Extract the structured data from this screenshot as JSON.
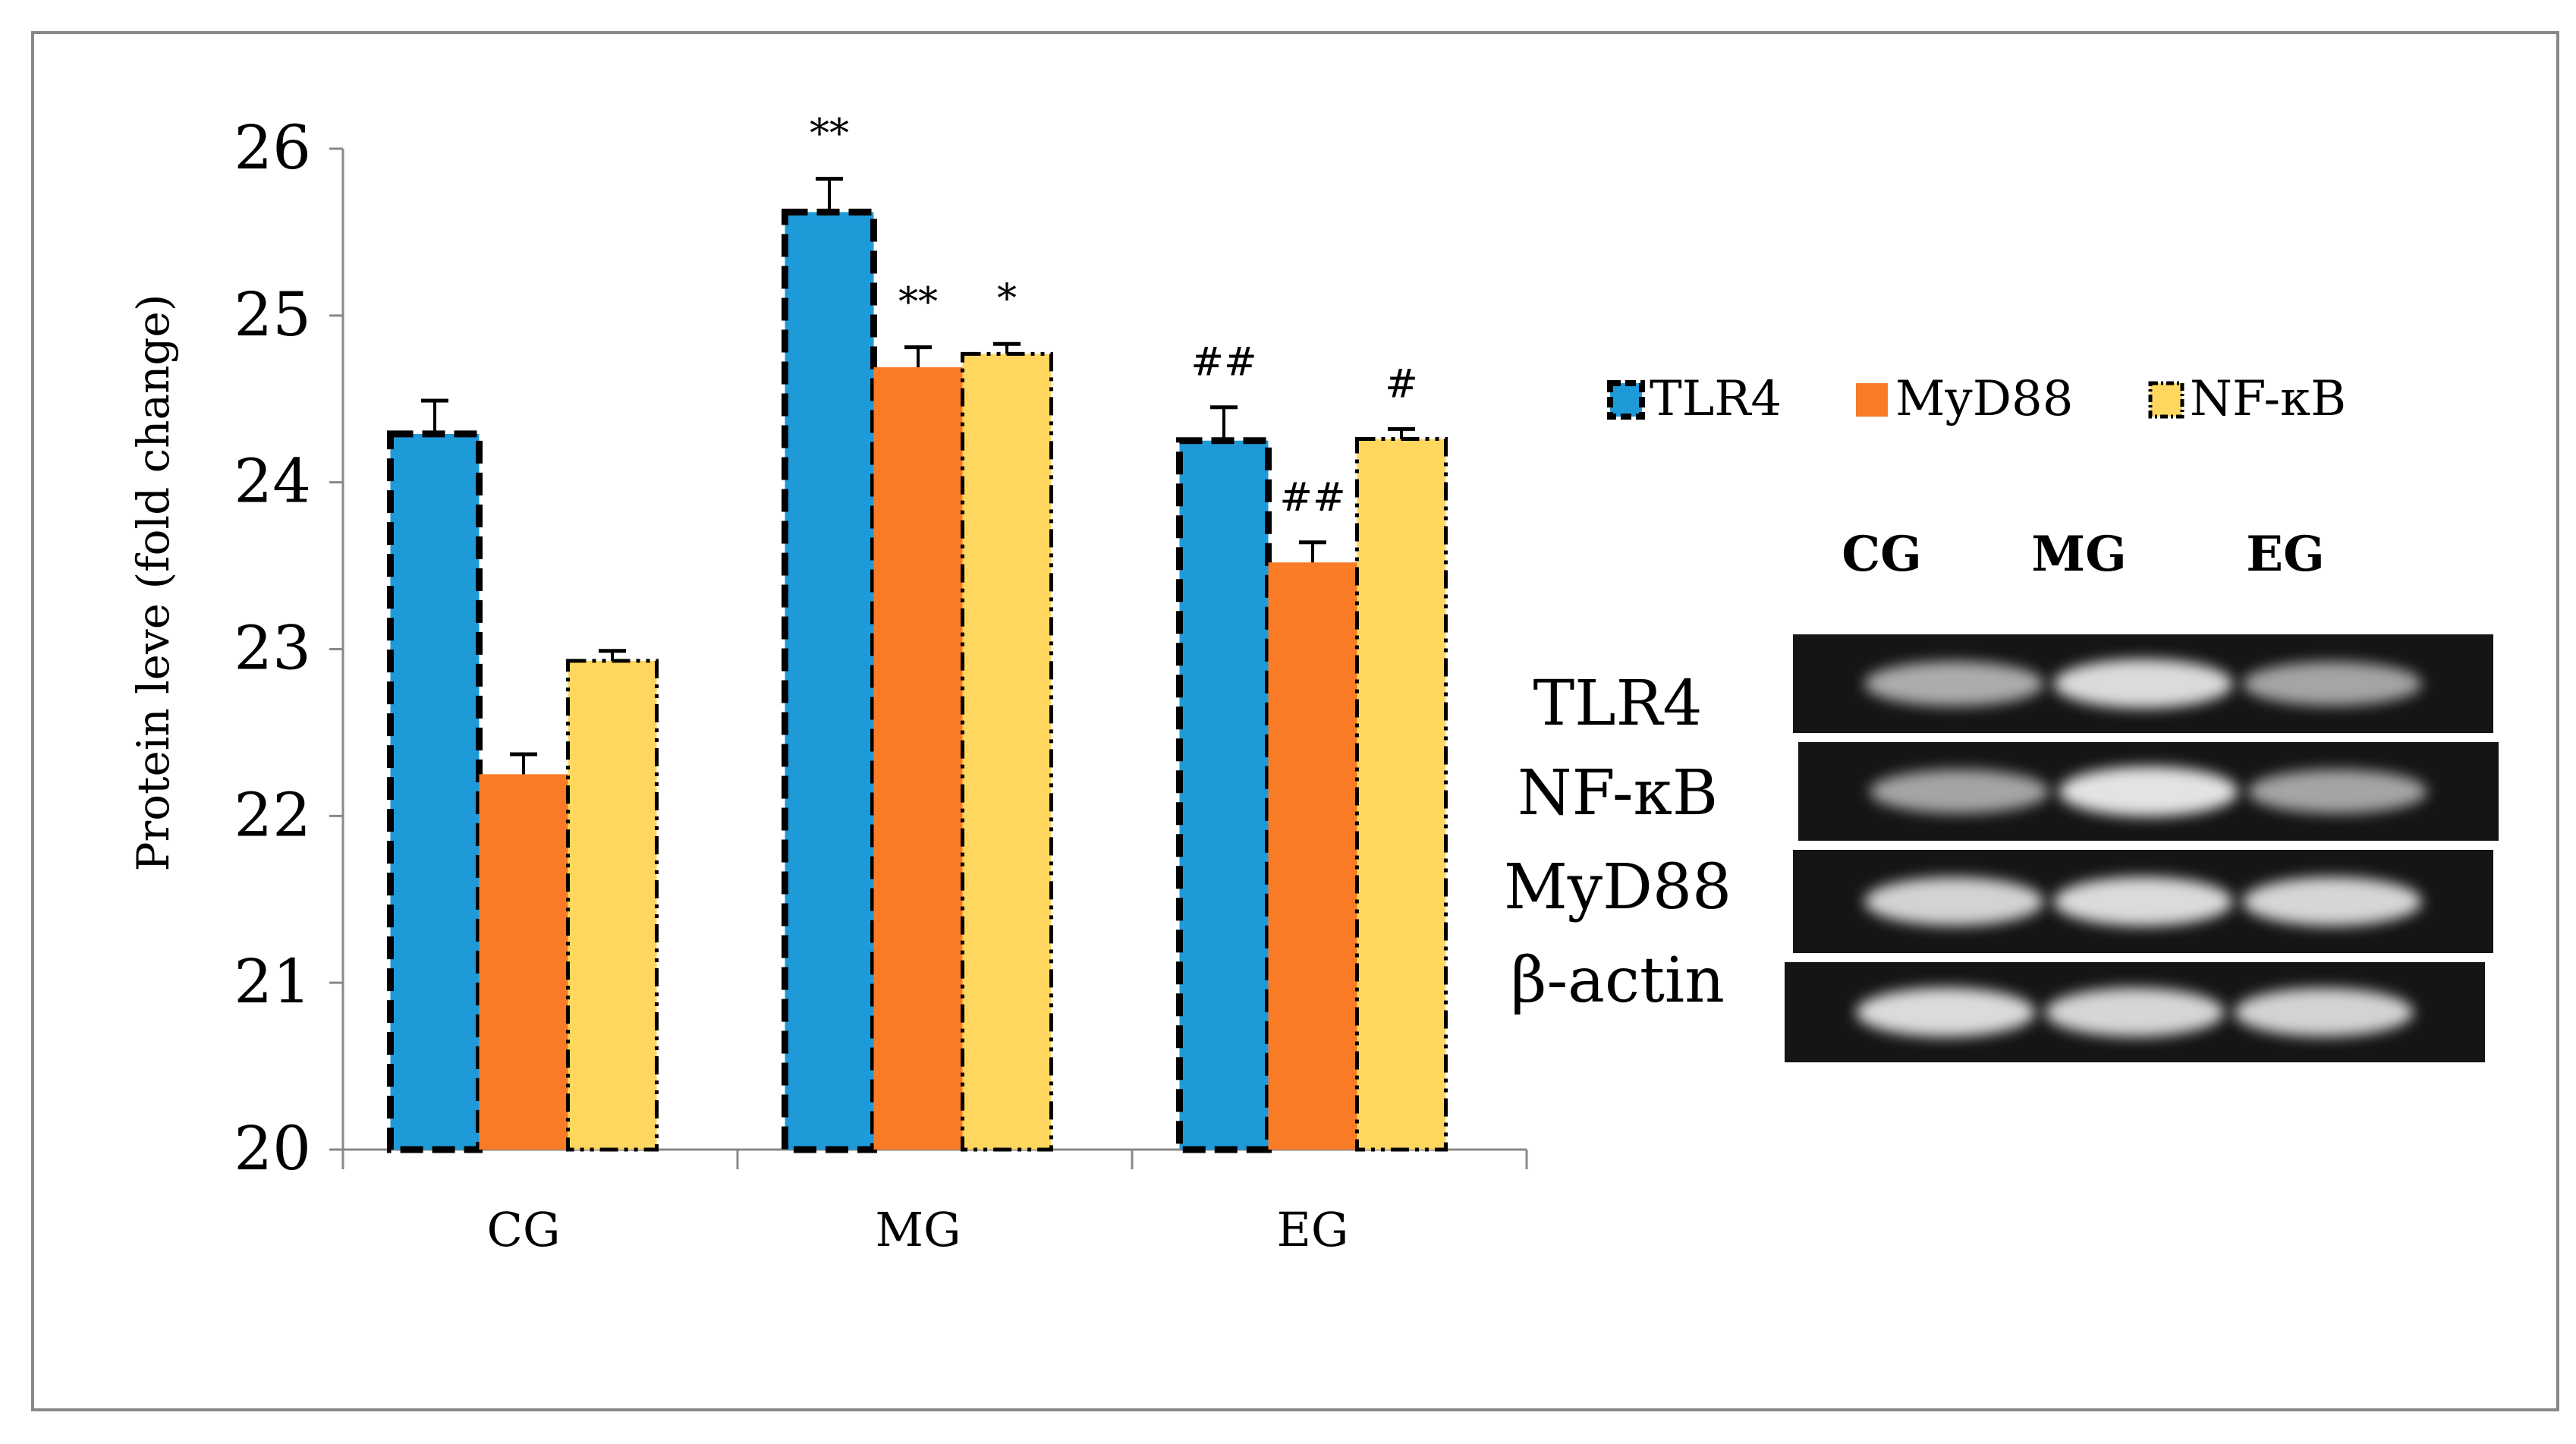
{
  "chart_data": {
    "type": "bar",
    "ylabel": "Protein leve (fold change)",
    "xlabel": "",
    "ylim": [
      20,
      26
    ],
    "yticks": [
      20,
      21,
      22,
      23,
      24,
      25,
      26
    ],
    "ytick_labels": [
      "20",
      "21",
      "22",
      "23",
      "24",
      "25",
      "26"
    ],
    "categories": [
      "CG",
      "MG",
      "EG"
    ],
    "series": [
      {
        "name": "TLR4",
        "color": "#1f9ad9",
        "values": [
          24.29,
          25.62,
          24.25
        ],
        "errors": [
          0.2,
          0.2,
          0.2
        ],
        "annotations": [
          "",
          "**",
          "##"
        ]
      },
      {
        "name": "MyD88",
        "color": "#f97b26",
        "values": [
          22.25,
          24.69,
          23.52
        ],
        "errors": [
          0.12,
          0.12,
          0.12
        ],
        "annotations": [
          "",
          "**",
          "##"
        ]
      },
      {
        "name": "NF-κB",
        "color": "#ffd75f",
        "values": [
          22.93,
          24.77,
          24.26
        ],
        "errors": [
          0.06,
          0.06,
          0.06
        ],
        "annotations": [
          "",
          "*",
          "#"
        ]
      }
    ],
    "legend_position": "right"
  },
  "blot": {
    "lanes": [
      "CG",
      "MG",
      "EG"
    ],
    "rows": [
      {
        "label": "TLR4",
        "intensity": [
          0.55,
          0.85,
          0.5
        ]
      },
      {
        "label": "NF-κB",
        "intensity": [
          0.5,
          0.9,
          0.5
        ]
      },
      {
        "label": "MyD88",
        "intensity": [
          0.8,
          0.85,
          0.82
        ]
      },
      {
        "label": "β-actin",
        "intensity": [
          0.85,
          0.82,
          0.8
        ]
      }
    ]
  }
}
